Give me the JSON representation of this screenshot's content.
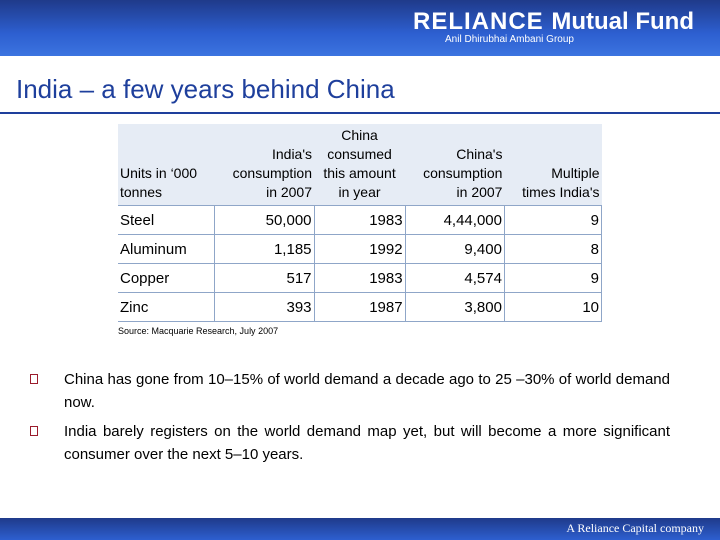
{
  "header": {
    "brand": "RELIANCE",
    "product": "Mutual Fund",
    "tagline": "Anil Dhirubhai Ambani Group"
  },
  "slide": {
    "title": "India – a few years behind China"
  },
  "table": {
    "headers": [
      [
        "Units in ‘000",
        "tonnes"
      ],
      [
        "India's",
        "consumption",
        "in 2007"
      ],
      [
        "China",
        "consumed",
        "this amount",
        "in year"
      ],
      [
        "China's",
        "consumption",
        "in 2007"
      ],
      [
        "Multiple",
        "times India's"
      ]
    ],
    "rows": [
      [
        "Steel",
        "50,000",
        "1983",
        "4,44,000",
        "9"
      ],
      [
        "Aluminum",
        "1,185",
        "1992",
        "9,400",
        "8"
      ],
      [
        "Copper",
        "517",
        "1983",
        "4,574",
        "9"
      ],
      [
        "Zinc",
        "393",
        "1987",
        "3,800",
        "10"
      ]
    ]
  },
  "source": "Source: Macquarie Research, July 2007",
  "bullets": [
    "China has gone from 10–15% of world demand a decade ago to 25 –30% of world demand now.",
    "India barely registers on the world demand map yet, but will become a more significant consumer over the next 5–10 years."
  ],
  "footer": {
    "text": "A Reliance Capital company"
  }
}
